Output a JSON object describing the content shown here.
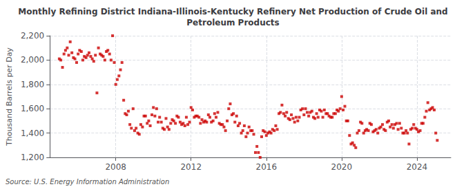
{
  "chart_data": {
    "type": "scatter",
    "title": "Monthly Refining District Indiana-Illinois-Kentucky Refinery Net Production of Crude Oil and\nPetroleum Products",
    "ylabel": "Thousand Barrels per Day",
    "annotations": [
      "Source: U.S. Energy Information Administration"
    ],
    "color": "#cc0000",
    "marker": "square",
    "grid": true,
    "xlim": [
      2004.5,
      2025.8
    ],
    "xticks": [
      2008,
      2012,
      2016,
      2020,
      2024
    ],
    "ylim": [
      1200,
      2200
    ],
    "yticks": [
      {
        "value": 1200,
        "label": "1,200"
      },
      {
        "value": 1400,
        "label": "1,400"
      },
      {
        "value": 1600,
        "label": "1,600"
      },
      {
        "value": 1800,
        "label": "1,800"
      },
      {
        "value": 2000,
        "label": "2,000"
      },
      {
        "value": 2200,
        "label": "2,200"
      }
    ],
    "x": [
      2005.0,
      2005.08,
      2005.17,
      2005.25,
      2005.33,
      2005.42,
      2005.5,
      2005.58,
      2005.67,
      2005.75,
      2005.83,
      2005.92,
      2006.0,
      2006.08,
      2006.17,
      2006.25,
      2006.33,
      2006.42,
      2006.5,
      2006.58,
      2006.67,
      2006.75,
      2006.83,
      2006.92,
      2007.0,
      2007.08,
      2007.17,
      2007.25,
      2007.33,
      2007.42,
      2007.5,
      2007.58,
      2007.67,
      2007.75,
      2007.83,
      2007.92,
      2008.0,
      2008.08,
      2008.17,
      2008.25,
      2008.33,
      2008.42,
      2008.5,
      2008.58,
      2008.67,
      2008.75,
      2008.83,
      2008.92,
      2009.0,
      2009.08,
      2009.17,
      2009.25,
      2009.33,
      2009.42,
      2009.5,
      2009.58,
      2009.67,
      2009.75,
      2009.83,
      2009.92,
      2010.0,
      2010.08,
      2010.17,
      2010.25,
      2010.33,
      2010.42,
      2010.5,
      2010.58,
      2010.67,
      2010.75,
      2010.83,
      2010.92,
      2011.0,
      2011.08,
      2011.17,
      2011.25,
      2011.33,
      2011.42,
      2011.5,
      2011.58,
      2011.67,
      2011.75,
      2011.83,
      2011.92,
      2012.0,
      2012.08,
      2012.17,
      2012.25,
      2012.33,
      2012.42,
      2012.5,
      2012.58,
      2012.67,
      2012.75,
      2012.83,
      2012.92,
      2013.0,
      2013.08,
      2013.17,
      2013.25,
      2013.33,
      2013.42,
      2013.5,
      2013.58,
      2013.67,
      2013.75,
      2013.83,
      2013.92,
      2014.0,
      2014.08,
      2014.17,
      2014.25,
      2014.33,
      2014.42,
      2014.5,
      2014.58,
      2014.67,
      2014.75,
      2014.83,
      2014.92,
      2015.0,
      2015.08,
      2015.17,
      2015.25,
      2015.33,
      2015.42,
      2015.5,
      2015.58,
      2015.67,
      2015.75,
      2015.83,
      2015.92,
      2016.0,
      2016.08,
      2016.17,
      2016.25,
      2016.33,
      2016.42,
      2016.5,
      2016.58,
      2016.67,
      2016.75,
      2016.83,
      2016.92,
      2017.0,
      2017.08,
      2017.17,
      2017.25,
      2017.33,
      2017.42,
      2017.5,
      2017.58,
      2017.67,
      2017.75,
      2017.83,
      2017.92,
      2018.0,
      2018.08,
      2018.17,
      2018.25,
      2018.33,
      2018.42,
      2018.5,
      2018.58,
      2018.67,
      2018.75,
      2018.83,
      2018.92,
      2019.0,
      2019.08,
      2019.17,
      2019.25,
      2019.33,
      2019.42,
      2019.5,
      2019.58,
      2019.67,
      2019.75,
      2019.83,
      2019.92,
      2020.0,
      2020.08,
      2020.17,
      2020.25,
      2020.33,
      2020.42,
      2020.5,
      2020.58,
      2020.67,
      2020.75,
      2020.83,
      2020.92,
      2021.0,
      2021.08,
      2021.17,
      2021.25,
      2021.33,
      2021.42,
      2021.5,
      2021.58,
      2021.67,
      2021.75,
      2021.83,
      2021.92,
      2022.0,
      2022.08,
      2022.17,
      2022.25,
      2022.33,
      2022.42,
      2022.5,
      2022.58,
      2022.67,
      2022.75,
      2022.83,
      2022.92,
      2023.0,
      2023.08,
      2023.17,
      2023.25,
      2023.33,
      2023.42,
      2023.5,
      2023.58,
      2023.67,
      2023.75,
      2023.83,
      2023.92,
      2024.0,
      2024.08,
      2024.17,
      2024.25,
      2024.33,
      2024.42,
      2024.5,
      2024.58,
      2024.67,
      2024.75,
      2024.83,
      2024.92,
      2025.0,
      2025.08
    ],
    "values": [
      2010,
      2000,
      1940,
      2050,
      2080,
      2100,
      2040,
      2150,
      2060,
      2020,
      2010,
      1980,
      2050,
      2080,
      2070,
      2000,
      2030,
      2020,
      2040,
      2060,
      2030,
      2010,
      1990,
      2040,
      1730,
      2100,
      2050,
      2040,
      2030,
      2000,
      2070,
      2080,
      2050,
      2000,
      2200,
      1980,
      1800,
      1840,
      1870,
      1920,
      1980,
      1670,
      1560,
      1550,
      1580,
      1470,
      1440,
      1600,
      1420,
      1440,
      1400,
      1390,
      1470,
      1450,
      1540,
      1540,
      1480,
      1500,
      1460,
      1550,
      1610,
      1540,
      1600,
      1490,
      1530,
      1490,
      1440,
      1430,
      1520,
      1450,
      1430,
      1480,
      1510,
      1500,
      1480,
      1540,
      1530,
      1490,
      1470,
      1480,
      1460,
      1530,
      1470,
      1490,
      1610,
      1590,
      1530,
      1540,
      1540,
      1530,
      1480,
      1510,
      1490,
      1500,
      1490,
      1550,
      1530,
      1490,
      1500,
      1560,
      1530,
      1570,
      1480,
      1470,
      1470,
      1450,
      1420,
      1500,
      1600,
      1640,
      1550,
      1560,
      1490,
      1540,
      1460,
      1480,
      1400,
      1420,
      1460,
      1370,
      1400,
      1450,
      1420,
      1420,
      1390,
      1240,
      1290,
      1240,
      1200,
      1370,
      1420,
      1410,
      1380,
      1400,
      1410,
      1400,
      1430,
      1420,
      1460,
      1430,
      1560,
      1570,
      1630,
      1560,
      1540,
      1570,
      1520,
      1510,
      1550,
      1520,
      1490,
      1530,
      1500,
      1530,
      1590,
      1600,
      1550,
      1600,
      1570,
      1540,
      1570,
      1580,
      1530,
      1520,
      1560,
      1530,
      1590,
      1580,
      1530,
      1590,
      1560,
      1560,
      1540,
      1530,
      1530,
      1560,
      1560,
      1590,
      1580,
      1600,
      1700,
      1590,
      1620,
      1500,
      1500,
      1380,
      1310,
      1320,
      1300,
      1280,
      1400,
      1420,
      1490,
      1480,
      1400,
      1420,
      1430,
      1420,
      1480,
      1470,
      1410,
      1420,
      1430,
      1400,
      1440,
      1450,
      1470,
      1430,
      1420,
      1490,
      1500,
      1450,
      1470,
      1440,
      1470,
      1480,
      1430,
      1480,
      1440,
      1400,
      1400,
      1420,
      1400,
      1310,
      1430,
      1440,
      1470,
      1440,
      1430,
      1410,
      1420,
      1480,
      1480,
      1530,
      1580,
      1650,
      1590,
      1600,
      1610,
      1590,
      1400,
      1340
    ]
  }
}
